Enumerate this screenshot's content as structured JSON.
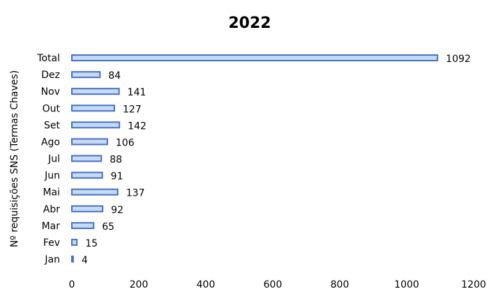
{
  "chart_data": {
    "type": "bar",
    "orientation": "horizontal",
    "title": "2022",
    "xlabel": "",
    "ylabel": "Nº requisições SNS (Termas Chaves)",
    "categories": [
      "Jan",
      "Fev",
      "Mar",
      "Abr",
      "Mai",
      "Jun",
      "Jul",
      "Ago",
      "Set",
      "Out",
      "Nov",
      "Dez",
      "Total"
    ],
    "values": [
      4,
      15,
      65,
      92,
      137,
      91,
      88,
      106,
      142,
      127,
      141,
      84,
      1092
    ],
    "xlim": [
      0,
      1200
    ],
    "xticks": [
      0,
      200,
      400,
      600,
      800,
      1000,
      1200
    ],
    "grid": false,
    "legend": "none",
    "colors": {
      "fill": "#c6d9f5",
      "stroke": "#4472c4"
    }
  }
}
